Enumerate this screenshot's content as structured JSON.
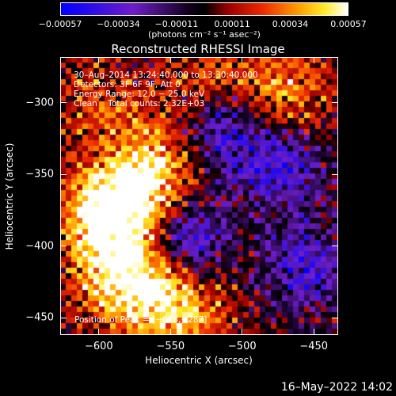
{
  "chart_data": {
    "type": "heatmap",
    "title": "Reconstructed RHESSI Image",
    "xlabel": "Heliocentric X (arcsec)",
    "ylabel": "Heliocentric Y (arcsec)",
    "xlim": [
      -627,
      -433
    ],
    "ylim": [
      -462,
      -268
    ],
    "x_ticks": [
      "−600",
      "−550",
      "−500",
      "−450"
    ],
    "x_tick_values": [
      -600,
      -550,
      -500,
      -450
    ],
    "y_ticks": [
      "−300",
      "−350",
      "−400",
      "−450"
    ],
    "y_tick_values": [
      -300,
      -350,
      -400,
      -450
    ],
    "colorbar": {
      "ticks": [
        "−0.00057",
        "−0.00034",
        "−0.00011",
        "0.00011",
        "0.00034",
        "0.00057"
      ],
      "tick_values": [
        -0.00057,
        -0.00034,
        -0.00011,
        0.00011,
        0.00034,
        0.00057
      ],
      "units": "(photons cm⁻² s⁻¹ asec⁻²)",
      "range": [
        -0.00057,
        0.00057
      ]
    },
    "annotations": [
      "30–Aug–2014 13:24:40.000 to 13:30:40.000",
      "Detectors: 3F 6F 9F, Att 0",
      "Energy Range: 12.0 − 25.0 keV",
      "Clean    Total counts: 2.32E+03"
    ],
    "peak_label": "Position of Peak = [−628,−287]",
    "bright_sources": [
      {
        "x": -598,
        "y": -378,
        "strength": 0.95
      },
      {
        "x": -575,
        "y": -370,
        "strength": 0.9
      },
      {
        "x": -560,
        "y": -338,
        "strength": 0.7
      },
      {
        "x": -588,
        "y": -420,
        "strength": 0.85
      },
      {
        "x": -560,
        "y": -430,
        "strength": 0.7
      },
      {
        "x": -540,
        "y": -450,
        "strength": 0.6
      },
      {
        "x": -520,
        "y": -290,
        "strength": 0.6
      },
      {
        "x": -470,
        "y": -292,
        "strength": 0.65
      },
      {
        "x": -600,
        "y": -300,
        "strength": 0.45
      }
    ],
    "dark_sources": [
      {
        "x": -515,
        "y": -315,
        "strength": 0.9
      },
      {
        "x": -475,
        "y": -345,
        "strength": 0.8
      },
      {
        "x": -540,
        "y": -395,
        "strength": 0.9
      },
      {
        "x": -455,
        "y": -415,
        "strength": 0.7
      }
    ]
  },
  "footer": {
    "timestamp": "16–May–2022 14:02"
  }
}
